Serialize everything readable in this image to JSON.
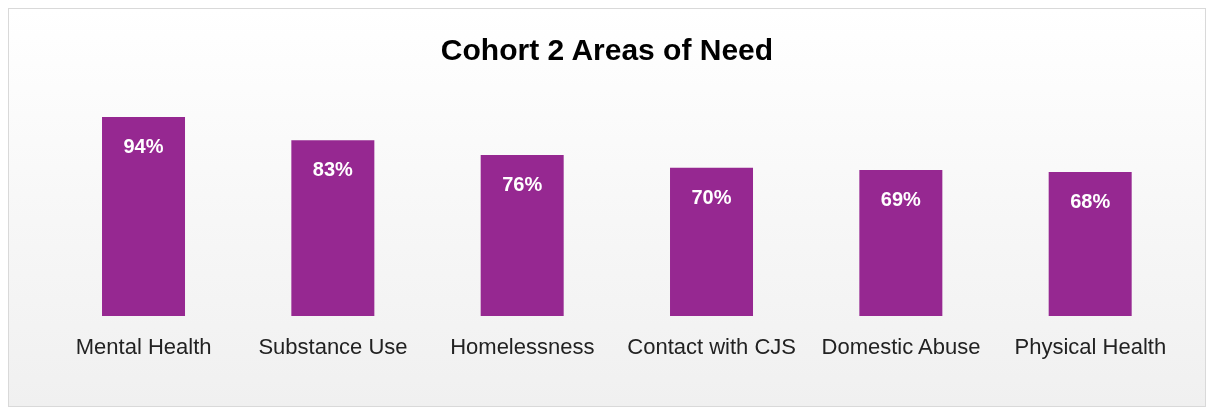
{
  "chart_data": {
    "type": "bar",
    "title": "Cohort 2 Areas of Need",
    "categories": [
      "Mental Health",
      "Substance Use",
      "Homelessness",
      "Contact with CJS",
      "Domestic Abuse",
      "Physical Health"
    ],
    "values": [
      94,
      83,
      76,
      70,
      69,
      68
    ],
    "value_labels": [
      "94%",
      "83%",
      "76%",
      "70%",
      "69%",
      "68%"
    ],
    "color": "#962891",
    "grid": false,
    "legend": false
  }
}
